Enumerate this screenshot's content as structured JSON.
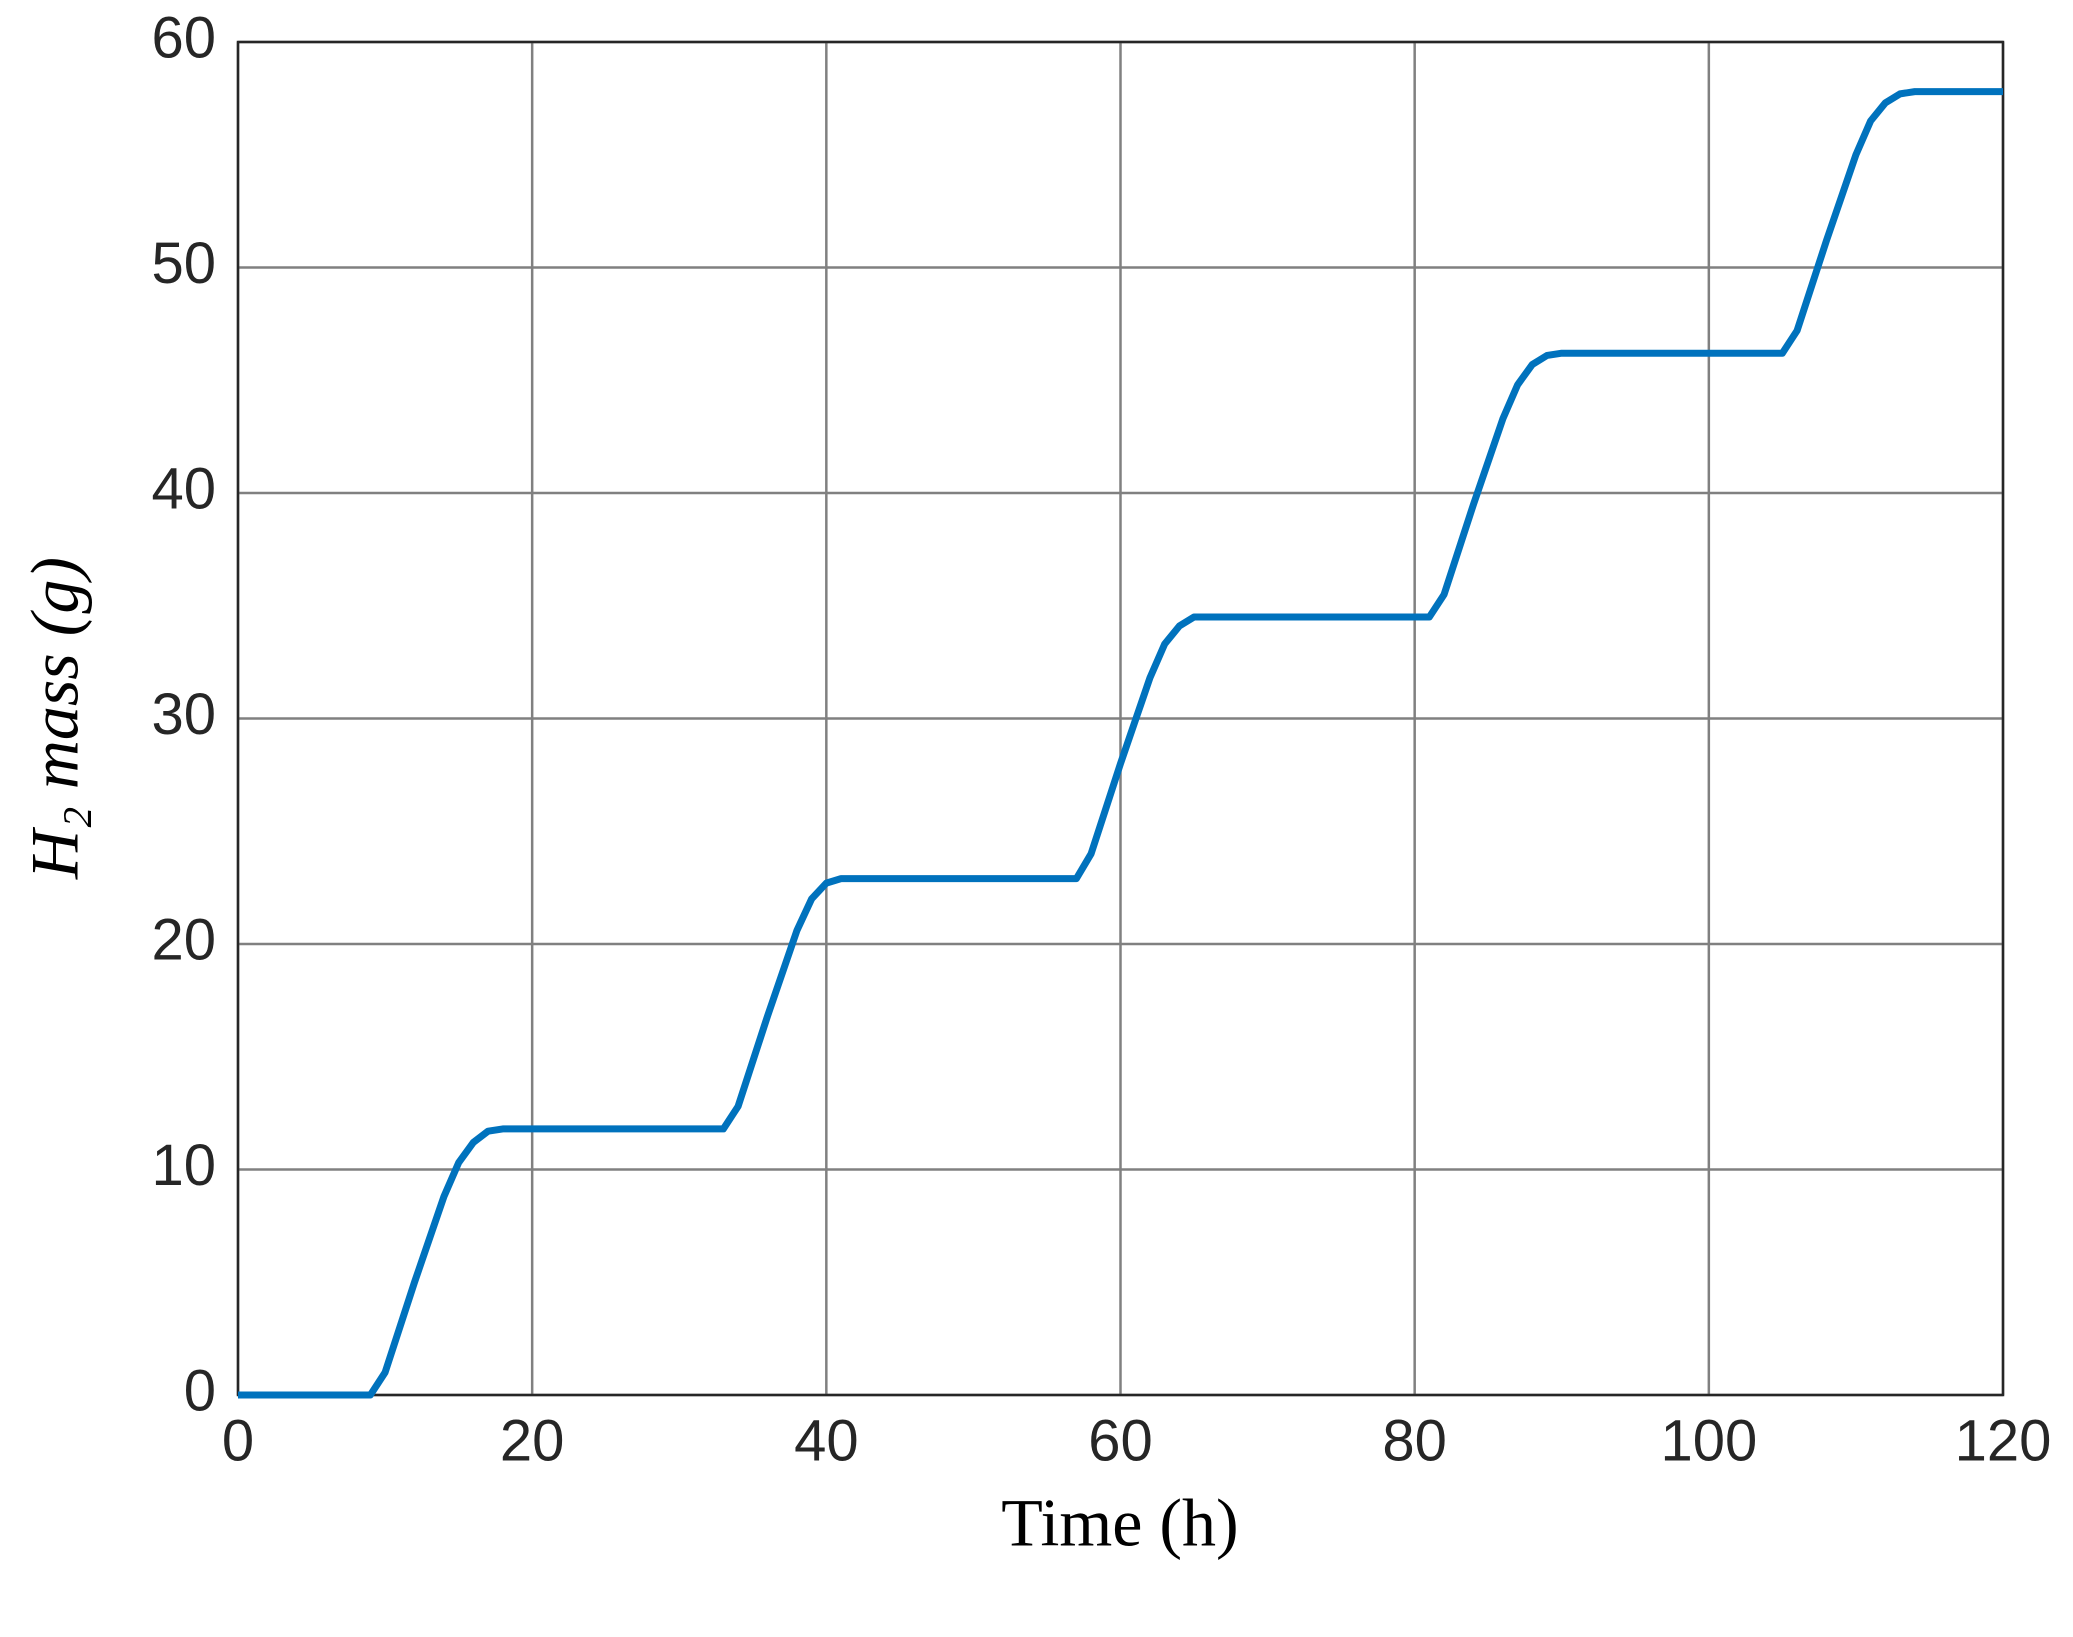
{
  "chart_data": {
    "type": "line",
    "x_label": "Time (h)",
    "y_label": "H₂ mass (g)",
    "x": [
      0,
      9,
      10,
      12,
      14,
      15,
      16,
      17,
      18,
      33,
      34,
      36,
      38,
      39,
      40,
      41,
      42,
      57,
      58,
      60,
      62,
      63,
      64,
      65,
      66,
      81,
      82,
      84,
      86,
      87,
      88,
      89,
      90,
      105,
      106,
      108,
      110,
      111,
      112,
      113,
      114,
      120
    ],
    "series": [
      {
        "color": "#0072bd",
        "values": [
          0,
          0,
          1.0,
          5.0,
          8.8,
          10.3,
          11.2,
          11.7,
          11.8,
          11.8,
          12.8,
          16.8,
          20.6,
          22.0,
          22.7,
          22.9,
          22.9,
          22.9,
          24.0,
          28.0,
          31.8,
          33.3,
          34.1,
          34.5,
          34.5,
          34.5,
          35.5,
          39.5,
          43.3,
          44.8,
          45.7,
          46.1,
          46.2,
          46.2,
          47.2,
          51.2,
          55.0,
          56.5,
          57.3,
          57.7,
          57.8,
          57.8
        ]
      }
    ],
    "xlim": [
      0,
      120
    ],
    "xticks": [
      0,
      20,
      40,
      60,
      80,
      100,
      120
    ],
    "ylim": [
      0,
      60
    ],
    "yticks": [
      0,
      10,
      20,
      30,
      40,
      50,
      60
    ],
    "grid": true
  }
}
